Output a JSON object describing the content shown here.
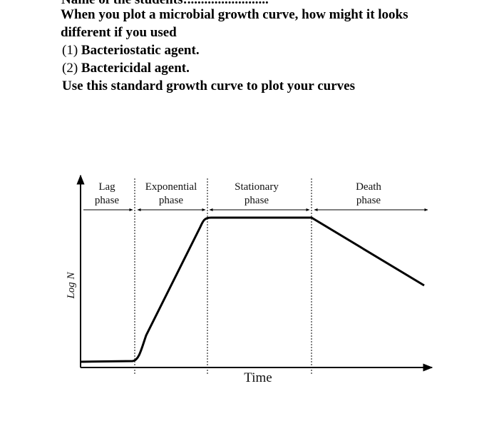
{
  "header": {
    "cut_line": "Name of the students:........................"
  },
  "question": {
    "lines": [
      "When you plot a microbial growth curve, how might it looks",
      "different if you used"
    ],
    "items": [
      {
        "number": "(1)",
        "text": "Bacteriostatic agent."
      },
      {
        "number": "(2)",
        "text": "Bactericidal agent."
      }
    ],
    "instruction": "Use this standard growth curve to plot your curves"
  },
  "diagram": {
    "y_axis_label": "Log N",
    "x_axis_label": "Time",
    "phases": [
      [
        "Lag",
        "phase"
      ],
      [
        "Exponential",
        "phase"
      ],
      [
        "Stationary",
        "phase"
      ],
      [
        "Death",
        "phase"
      ]
    ]
  }
}
